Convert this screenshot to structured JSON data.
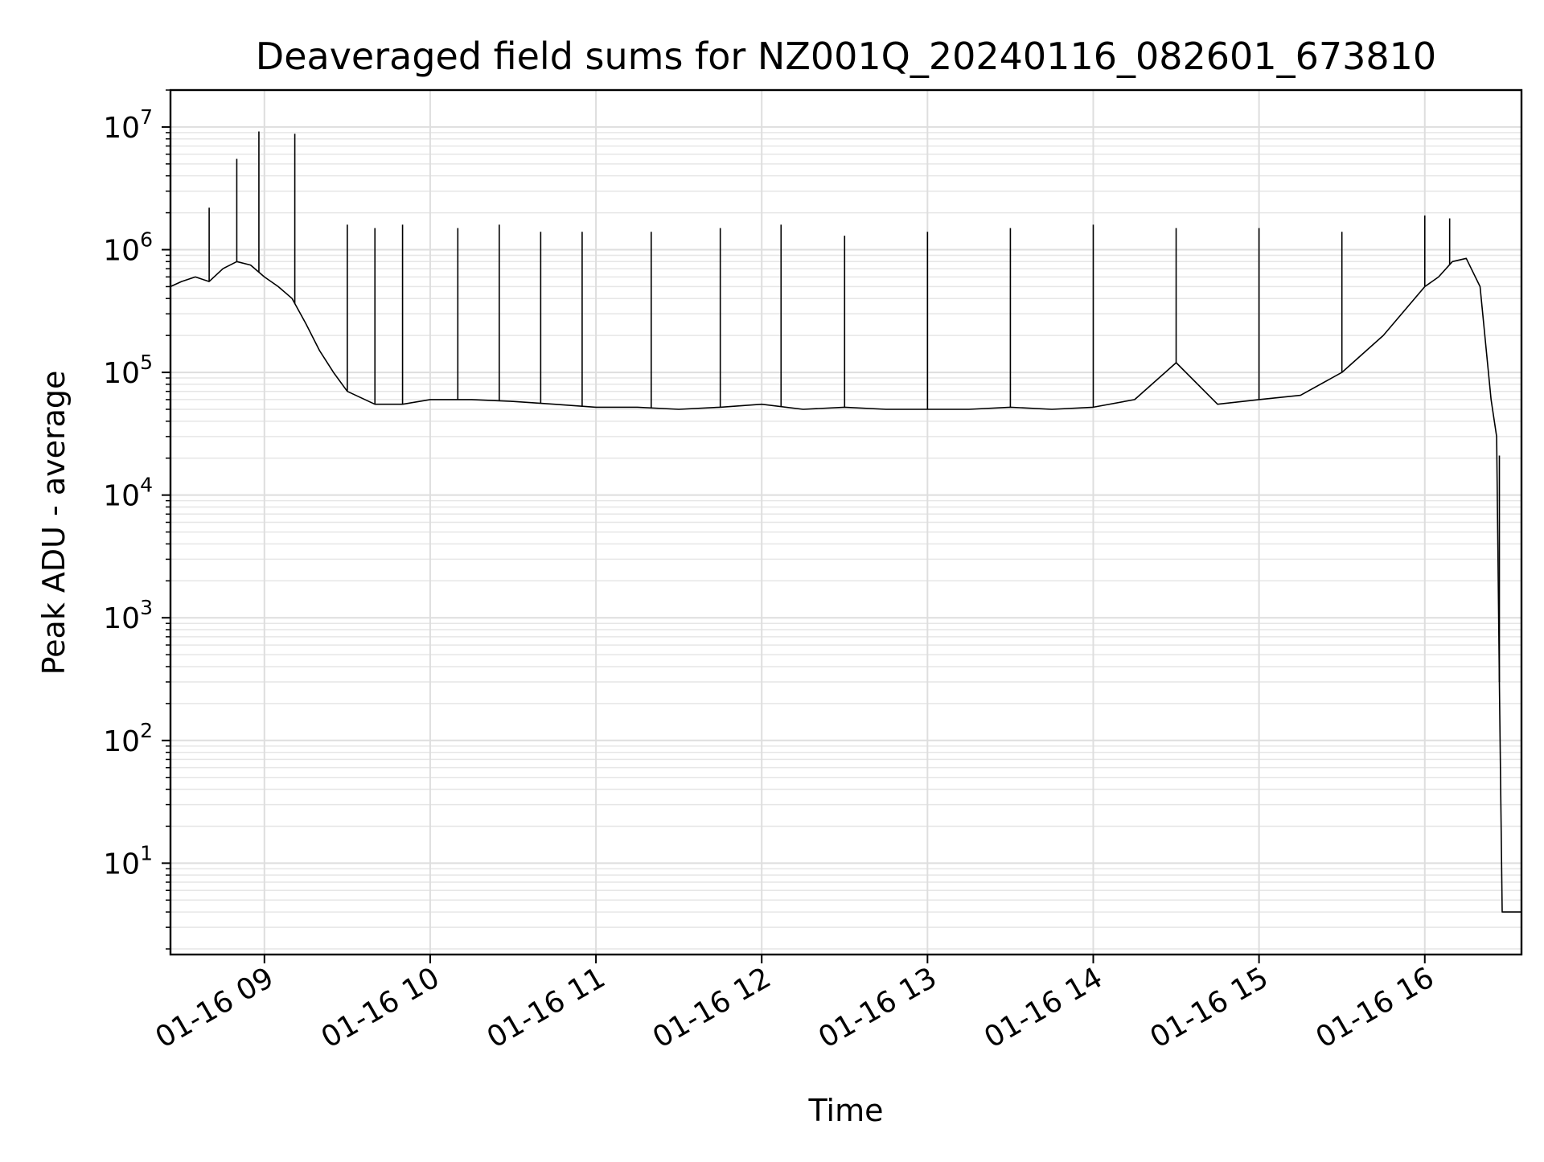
{
  "chart_data": {
    "type": "line",
    "title": "Deaveraged field sums for NZ001Q_20240116_082601_673810",
    "xlabel": "Time",
    "ylabel": "Peak ADU - average",
    "xscale": "time",
    "yscale": "log",
    "xlim": [
      "2024-01-16T08:26:00",
      "2024-01-16T16:35:00"
    ],
    "ylim": [
      1.8,
      20000000
    ],
    "grid": true,
    "x_ticks": [
      {
        "t": "2024-01-16T09:00:00",
        "label": "01-16 09"
      },
      {
        "t": "2024-01-16T10:00:00",
        "label": "01-16 10"
      },
      {
        "t": "2024-01-16T11:00:00",
        "label": "01-16 11"
      },
      {
        "t": "2024-01-16T12:00:00",
        "label": "01-16 12"
      },
      {
        "t": "2024-01-16T13:00:00",
        "label": "01-16 13"
      },
      {
        "t": "2024-01-16T14:00:00",
        "label": "01-16 14"
      },
      {
        "t": "2024-01-16T15:00:00",
        "label": "01-16 15"
      },
      {
        "t": "2024-01-16T16:00:00",
        "label": "01-16 16"
      }
    ],
    "y_ticks": [
      {
        "value": 10,
        "base": "10",
        "exp": "1"
      },
      {
        "value": 100,
        "base": "10",
        "exp": "2"
      },
      {
        "value": 1000,
        "base": "10",
        "exp": "3"
      },
      {
        "value": 10000,
        "base": "10",
        "exp": "4"
      },
      {
        "value": 100000,
        "base": "10",
        "exp": "5"
      },
      {
        "value": 1000000,
        "base": "10",
        "exp": "6"
      },
      {
        "value": 10000000,
        "base": "10",
        "exp": "7"
      }
    ],
    "series": [
      {
        "color": "#000000",
        "x": [
          "2024-01-16T08:26:00",
          "2024-01-16T08:30:00",
          "2024-01-16T08:35:00",
          "2024-01-16T08:40:00",
          "2024-01-16T08:45:00",
          "2024-01-16T08:50:00",
          "2024-01-16T08:55:00",
          "2024-01-16T09:00:00",
          "2024-01-16T09:05:00",
          "2024-01-16T09:10:00",
          "2024-01-16T09:15:00",
          "2024-01-16T09:20:00",
          "2024-01-16T09:25:00",
          "2024-01-16T09:30:00",
          "2024-01-16T09:40:00",
          "2024-01-16T09:50:00",
          "2024-01-16T10:00:00",
          "2024-01-16T10:15:00",
          "2024-01-16T10:30:00",
          "2024-01-16T10:45:00",
          "2024-01-16T11:00:00",
          "2024-01-16T11:15:00",
          "2024-01-16T11:30:00",
          "2024-01-16T11:45:00",
          "2024-01-16T12:00:00",
          "2024-01-16T12:15:00",
          "2024-01-16T12:30:00",
          "2024-01-16T12:45:00",
          "2024-01-16T13:00:00",
          "2024-01-16T13:15:00",
          "2024-01-16T13:30:00",
          "2024-01-16T13:45:00",
          "2024-01-16T14:00:00",
          "2024-01-16T14:15:00",
          "2024-01-16T14:30:00",
          "2024-01-16T14:45:00",
          "2024-01-16T15:00:00",
          "2024-01-16T15:15:00",
          "2024-01-16T15:30:00",
          "2024-01-16T15:45:00",
          "2024-01-16T16:00:00",
          "2024-01-16T16:05:00",
          "2024-01-16T16:10:00",
          "2024-01-16T16:15:00",
          "2024-01-16T16:20:00",
          "2024-01-16T16:24:00",
          "2024-01-16T16:26:00",
          "2024-01-16T16:27:00",
          "2024-01-16T16:28:00",
          "2024-01-16T16:30:00",
          "2024-01-16T16:35:00"
        ],
        "y": [
          500000,
          550000,
          600000,
          550000,
          700000,
          800000,
          750000,
          600000,
          500000,
          400000,
          250000,
          150000,
          100000,
          70000,
          55000,
          55000,
          60000,
          60000,
          58000,
          55000,
          52000,
          52000,
          50000,
          52000,
          55000,
          50000,
          52000,
          50000,
          50000,
          50000,
          52000,
          50000,
          52000,
          60000,
          120000,
          55000,
          60000,
          65000,
          100000,
          200000,
          500000,
          600000,
          800000,
          850000,
          500000,
          60000,
          30000,
          300,
          4,
          4,
          4
        ]
      }
    ],
    "spikes": [
      {
        "t": "2024-01-16T08:40:00",
        "y": 2200000
      },
      {
        "t": "2024-01-16T08:50:00",
        "y": 5500000
      },
      {
        "t": "2024-01-16T08:58:00",
        "y": 9200000
      },
      {
        "t": "2024-01-16T09:11:00",
        "y": 8800000
      },
      {
        "t": "2024-01-16T09:30:00",
        "y": 1600000
      },
      {
        "t": "2024-01-16T09:40:00",
        "y": 1500000
      },
      {
        "t": "2024-01-16T09:50:00",
        "y": 1600000
      },
      {
        "t": "2024-01-16T10:10:00",
        "y": 1500000
      },
      {
        "t": "2024-01-16T10:25:00",
        "y": 1600000
      },
      {
        "t": "2024-01-16T10:40:00",
        "y": 1400000
      },
      {
        "t": "2024-01-16T10:55:00",
        "y": 1400000
      },
      {
        "t": "2024-01-16T11:20:00",
        "y": 1400000
      },
      {
        "t": "2024-01-16T11:45:00",
        "y": 1500000
      },
      {
        "t": "2024-01-16T12:07:00",
        "y": 1600000
      },
      {
        "t": "2024-01-16T12:30:00",
        "y": 1300000
      },
      {
        "t": "2024-01-16T13:00:00",
        "y": 1400000
      },
      {
        "t": "2024-01-16T13:30:00",
        "y": 1500000
      },
      {
        "t": "2024-01-16T14:00:00",
        "y": 1600000
      },
      {
        "t": "2024-01-16T14:30:00",
        "y": 1500000
      },
      {
        "t": "2024-01-16T15:00:00",
        "y": 1500000
      },
      {
        "t": "2024-01-16T15:30:00",
        "y": 1400000
      },
      {
        "t": "2024-01-16T16:00:00",
        "y": 1900000
      },
      {
        "t": "2024-01-16T16:09:00",
        "y": 1800000
      },
      {
        "t": "2024-01-16T16:27:00",
        "y": 21000
      }
    ]
  }
}
